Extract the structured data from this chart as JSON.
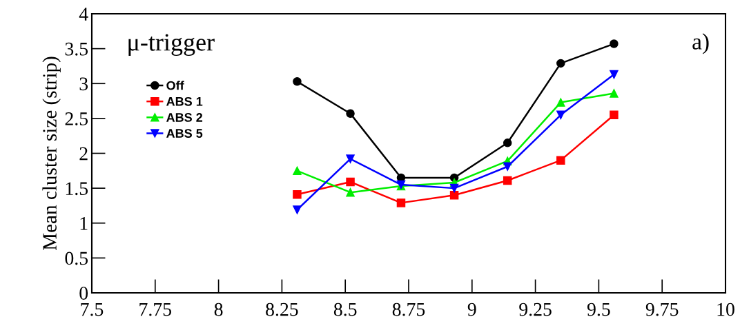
{
  "chart_data": {
    "type": "line",
    "title": "μ-trigger",
    "ylabel": "Mean cluster size (strip)",
    "annotations": [
      "a)"
    ],
    "x": [
      8.31,
      8.52,
      8.72,
      8.93,
      9.14,
      9.35,
      9.56
    ],
    "series": [
      {
        "name": "Off",
        "color": "#000000",
        "marker": "circle",
        "values": [
          3.03,
          2.57,
          1.65,
          1.65,
          2.15,
          3.29,
          3.57
        ]
      },
      {
        "name": "ABS 1",
        "color": "#ff0000",
        "marker": "square",
        "values": [
          1.41,
          1.59,
          1.29,
          1.4,
          1.61,
          1.9,
          2.55
        ]
      },
      {
        "name": "ABS 2",
        "color": "#00ee00",
        "marker": "triangle",
        "values": [
          1.75,
          1.44,
          1.53,
          1.58,
          1.89,
          2.73,
          2.86
        ]
      },
      {
        "name": "ABS 5",
        "color": "#0000ff",
        "marker": "triangle",
        "values": [
          1.19,
          1.92,
          1.55,
          1.5,
          1.81,
          2.55,
          3.13
        ]
      }
    ],
    "xlim": [
      7.5,
      10
    ],
    "xticks": [
      7.5,
      7.75,
      8,
      8.25,
      8.5,
      8.75,
      9,
      9.25,
      9.5,
      9.75,
      10
    ],
    "ylim": [
      0,
      4
    ],
    "yticks": [
      0,
      0.5,
      1,
      1.5,
      2,
      2.5,
      3,
      3.5,
      4
    ],
    "grid": false,
    "legend": "top left",
    "line_style": "solid"
  }
}
